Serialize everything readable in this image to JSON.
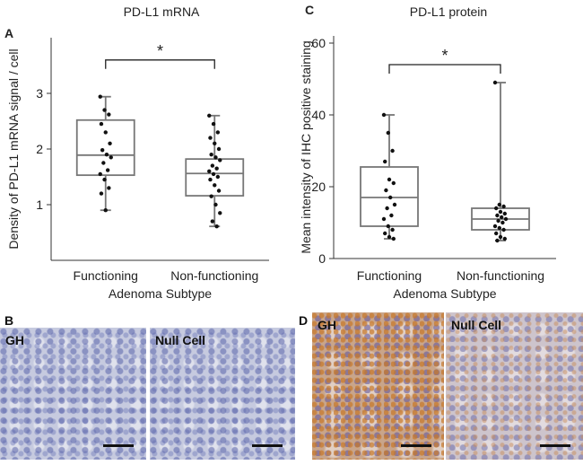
{
  "chart_data": [
    {
      "type": "box",
      "panel_label": "A",
      "title": "PD-L1 mRNA",
      "y_label": "Density of PD-L1 mRNA signal / cell",
      "x_label": "Adenoma Subtype",
      "categories": [
        "Functioning",
        "Non-functioning"
      ],
      "boxes": [
        {
          "min": 0.9,
          "q1": 1.53,
          "median": 1.89,
          "q3": 2.52,
          "max": 2.94,
          "points": [
            2.94,
            2.7,
            2.62,
            2.45,
            2.3,
            2.1,
            1.98,
            1.9,
            1.85,
            1.75,
            1.62,
            1.55,
            1.45,
            1.3,
            1.2,
            0.9
          ]
        },
        {
          "min": 0.61,
          "q1": 1.16,
          "median": 1.56,
          "q3": 1.82,
          "max": 2.6,
          "points": [
            2.6,
            2.45,
            2.3,
            2.2,
            2.1,
            2.0,
            1.9,
            1.85,
            1.8,
            1.7,
            1.65,
            1.6,
            1.55,
            1.5,
            1.45,
            1.35,
            1.25,
            1.15,
            1.0,
            0.85,
            0.7,
            0.61
          ]
        }
      ],
      "color": "#777777",
      "point_color": "#111111",
      "significance": {
        "label": "*",
        "y": 3.6
      },
      "ylim": [
        0,
        4
      ],
      "yticks": [
        1,
        2,
        3
      ]
    },
    {
      "type": "box",
      "panel_label": "C",
      "title": "PD-L1 protein",
      "y_label": "Mean intensity of IHC positive staining",
      "x_label": "Adenoma Subtype",
      "categories": [
        "Functioning",
        "Non-functioning"
      ],
      "boxes": [
        {
          "min": 5.5,
          "q1": 9,
          "median": 17,
          "q3": 25.5,
          "max": 40,
          "points": [
            40,
            35,
            30,
            27,
            22,
            21,
            19,
            17,
            15,
            14,
            12,
            11,
            9,
            8,
            7,
            6,
            5.5
          ]
        },
        {
          "min": 5,
          "q1": 8,
          "median": 11,
          "q3": 14,
          "max": 49,
          "points": [
            49,
            15,
            14.5,
            14,
            13,
            12.5,
            12,
            11.5,
            11,
            10.5,
            10,
            9,
            8.5,
            8,
            7,
            6,
            5.5,
            5
          ]
        }
      ],
      "color": "#777777",
      "point_color": "#111111",
      "significance": {
        "label": "*",
        "y": 54
      },
      "ylim": [
        0,
        62
      ],
      "yticks": [
        0,
        20,
        40,
        60
      ]
    }
  ],
  "images": [
    {
      "panel_label": "B",
      "labels": [
        "GH",
        "Null Cell"
      ]
    },
    {
      "panel_label": "D",
      "labels": [
        "GH",
        "Null Cell"
      ]
    }
  ]
}
